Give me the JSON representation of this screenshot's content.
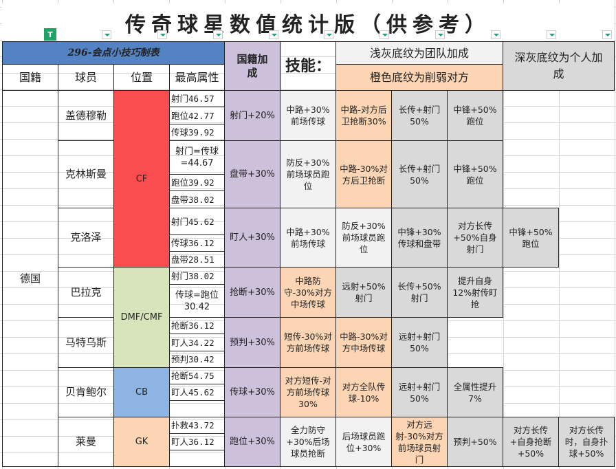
{
  "title": "传奇球星数值统计版（供参考）",
  "header": {
    "banner": "296-会点小技巧制表",
    "columns": [
      "国籍",
      "球员",
      "位置",
      "最高属性"
    ],
    "nationality_bonus": "国籍加成",
    "skills": "技能：",
    "legend_light": "浅灰底纹为团队加成",
    "legend_orange": "橙色底纹为削弱对方",
    "legend_dark": "深灰底纹为个人加成"
  },
  "colors": {
    "banner": "#5383c3",
    "purple": "#ccc0da",
    "light": "#f2f2f2",
    "orange": "#fcd5b4",
    "dark": "#d9d9d9",
    "CF": "#fa4d4d",
    "DMF/CMF": "#d8e4bc",
    "CB": "#8db4e2",
    "GK": "#fcd5b4"
  },
  "nationality": "德国",
  "positions": [
    "CF",
    "DMF/CMF",
    "CB",
    "GK"
  ],
  "players": [
    {
      "name": "盖德穆勒",
      "bonus": "射门+20%",
      "stats": [
        "射门46.57",
        "跑位42.77",
        "传球39.92"
      ],
      "skills": [
        {
          "text": "中路+30%前场传球",
          "type": "light"
        },
        {
          "text": "中路-对方后卫抢断30%",
          "type": "orange"
        },
        {
          "text": "长传+射门50%",
          "type": "dark"
        },
        {
          "text": "中锋+50%跑位",
          "type": "dark"
        }
      ]
    },
    {
      "name": "克林斯曼",
      "bonus": "盘带+30%",
      "stats": [
        "射门=传球=44.67",
        "跑位39.92",
        "盘带38.02"
      ],
      "skills": [
        {
          "text": "防反+30%前场球员跑位",
          "type": "light"
        },
        {
          "text": "中路-30%对方后卫抢断",
          "type": "orange"
        },
        {
          "text": "长传+射门50%",
          "type": "dark"
        },
        {
          "text": "中锋+50%跑位",
          "type": "dark"
        }
      ]
    },
    {
      "name": "克洛泽",
      "bonus": "盯人+30%",
      "stats": [
        "射门45.62",
        "传球36.12",
        "盘带28.51"
      ],
      "skills": [
        {
          "text": "中路+30%前场传球",
          "type": "light"
        },
        {
          "text": "防反+30%前场球员跑位",
          "type": "light"
        },
        {
          "text": "中锋+30%传球和盘带",
          "type": "dark"
        },
        {
          "text": "对方长传+50%自身射门",
          "type": "dark"
        },
        {
          "text": "中锋+50%跑位",
          "type": "dark"
        }
      ]
    },
    {
      "name": "巴拉克",
      "bonus": "抢断+30%",
      "stats": [
        "射门38.02",
        "传球=跑位30.42"
      ],
      "skills": [
        {
          "text": "中路防守-30%对方中场传球",
          "type": "orange"
        },
        {
          "text": "远射+50%射门",
          "type": "dark"
        },
        {
          "text": "长传+50%射门",
          "type": "dark"
        },
        {
          "text": "提升自身12%射传盯抢",
          "type": "dark"
        }
      ]
    },
    {
      "name": "马特乌斯",
      "bonus": "预判+30%",
      "stats": [
        "抢断36.12",
        "盯人34.22",
        "预判30.42"
      ],
      "skills": [
        {
          "text": "短传-30%对方前场传球",
          "type": "orange"
        },
        {
          "text": "中路-30%对方中场传球",
          "type": "orange"
        },
        {
          "text": "远射+射门50%",
          "type": "dark"
        }
      ]
    },
    {
      "name": "贝肯鲍尔",
      "bonus": "传球+30%",
      "stats": [
        "抢断54.75",
        "盯人45.62",
        ""
      ],
      "skills": [
        {
          "text": "对方短传-对方前场传球30%",
          "type": "orange"
        },
        {
          "text": "对方全队传球-10%",
          "type": "orange"
        },
        {
          "text": "远射+射门50%",
          "type": "dark"
        },
        {
          "text": "全属性提升7%",
          "type": "dark"
        }
      ]
    },
    {
      "name": "莱曼",
      "bonus": "跑位+30%",
      "stats": [
        "扑救43.72",
        "盯人36.12",
        ""
      ],
      "skills": [
        {
          "text": "全力防守+30%后场球员抢断",
          "type": "light"
        },
        {
          "text": "后场球员跑位+30%",
          "type": "light"
        },
        {
          "text": "对方远射-30%对方前场球员射门",
          "type": "orange"
        },
        {
          "text": "预判+50%",
          "type": "dark"
        },
        {
          "text": "对方长传+自身抢断+50%",
          "type": "dark"
        },
        {
          "text": "对方长传时，自身扑球+50%",
          "type": "dark"
        }
      ]
    }
  ]
}
